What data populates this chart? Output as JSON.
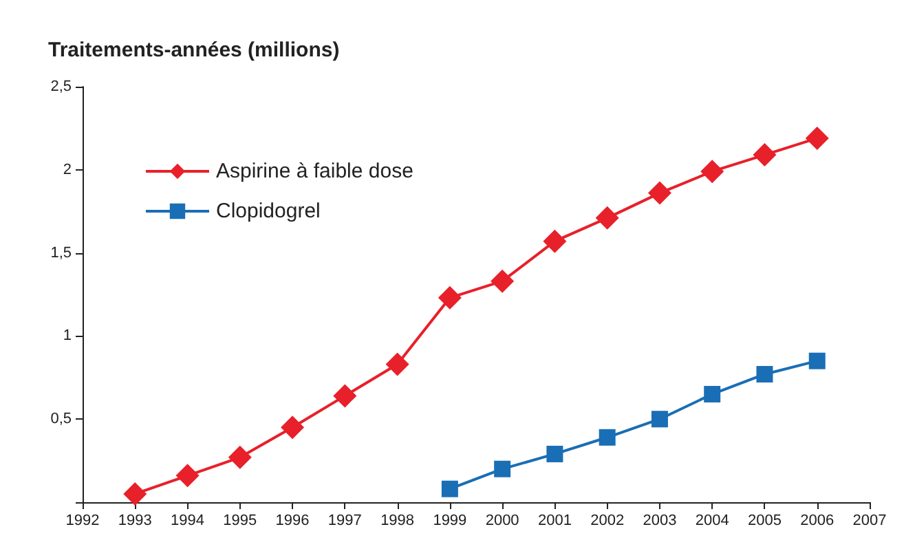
{
  "chart_data": {
    "type": "line",
    "ylabel": "Traitements-années (millions)",
    "x": [
      1993,
      1994,
      1995,
      1996,
      1997,
      1998,
      1999,
      2000,
      2001,
      2002,
      2003,
      2004,
      2005,
      2006
    ],
    "series": [
      {
        "name": "Aspirine à faible dose",
        "color": "#e8202a",
        "marker": "diamond",
        "values": [
          0.05,
          0.16,
          0.27,
          0.45,
          0.64,
          0.83,
          1.23,
          1.33,
          1.57,
          1.71,
          1.86,
          1.99,
          2.09,
          2.19
        ]
      },
      {
        "name": "Clopidogrel",
        "color": "#1a6eb5",
        "marker": "square",
        "x": [
          1999,
          2000,
          2001,
          2002,
          2003,
          2004,
          2005,
          2006
        ],
        "values": [
          0.08,
          0.2,
          0.29,
          0.39,
          0.5,
          0.65,
          0.77,
          0.85
        ]
      }
    ],
    "xlim": [
      1992,
      2007
    ],
    "xticks": [
      1992,
      1993,
      1994,
      1995,
      1996,
      1997,
      1998,
      1999,
      2000,
      2001,
      2002,
      2003,
      2004,
      2005,
      2006,
      2007
    ],
    "ylim": [
      0,
      2.5
    ],
    "yticks": [
      {
        "value": 0,
        "label": null
      },
      {
        "value": 0.5,
        "label": "0,5"
      },
      1,
      {
        "value": 1.5,
        "label": "1,5"
      },
      2,
      {
        "value": 2.5,
        "label": "2,5"
      }
    ],
    "grid": false,
    "legend": "top left",
    "line_style": "solid"
  }
}
